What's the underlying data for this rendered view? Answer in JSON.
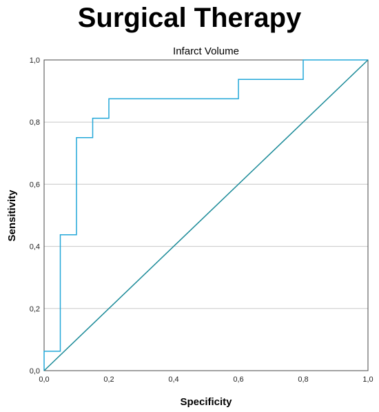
{
  "page": {
    "title": "Surgical Therapy"
  },
  "chart_data": {
    "type": "line",
    "title": "Infarct Volume",
    "xlabel": "Specificity",
    "ylabel": "Sensitivity",
    "xlim": [
      0,
      1
    ],
    "ylim": [
      0,
      1
    ],
    "x_ticks": [
      "0,0",
      "0,2",
      "0,4",
      "0,6",
      "0,8",
      "1,0"
    ],
    "y_ticks": [
      "0,0",
      "0,2",
      "0,4",
      "0,6",
      "0,8",
      "1,0"
    ],
    "grid": "horizontal",
    "legend": "none",
    "series": [
      {
        "color": "#22a7d8",
        "style": "step",
        "x": [
          0,
          0,
          0.05,
          0.05,
          0.1,
          0.1,
          0.15,
          0.15,
          0.2,
          0.2,
          0.6,
          0.6,
          0.8,
          0.8,
          1.0
        ],
        "y": [
          0,
          0.0625,
          0.0625,
          0.4375,
          0.4375,
          0.75,
          0.75,
          0.8125,
          0.8125,
          0.875,
          0.875,
          0.9375,
          0.9375,
          1.0,
          1.0
        ]
      },
      {
        "color": "#1a8a98",
        "style": "reference",
        "x": [
          0,
          1
        ],
        "y": [
          0,
          1
        ]
      }
    ]
  }
}
